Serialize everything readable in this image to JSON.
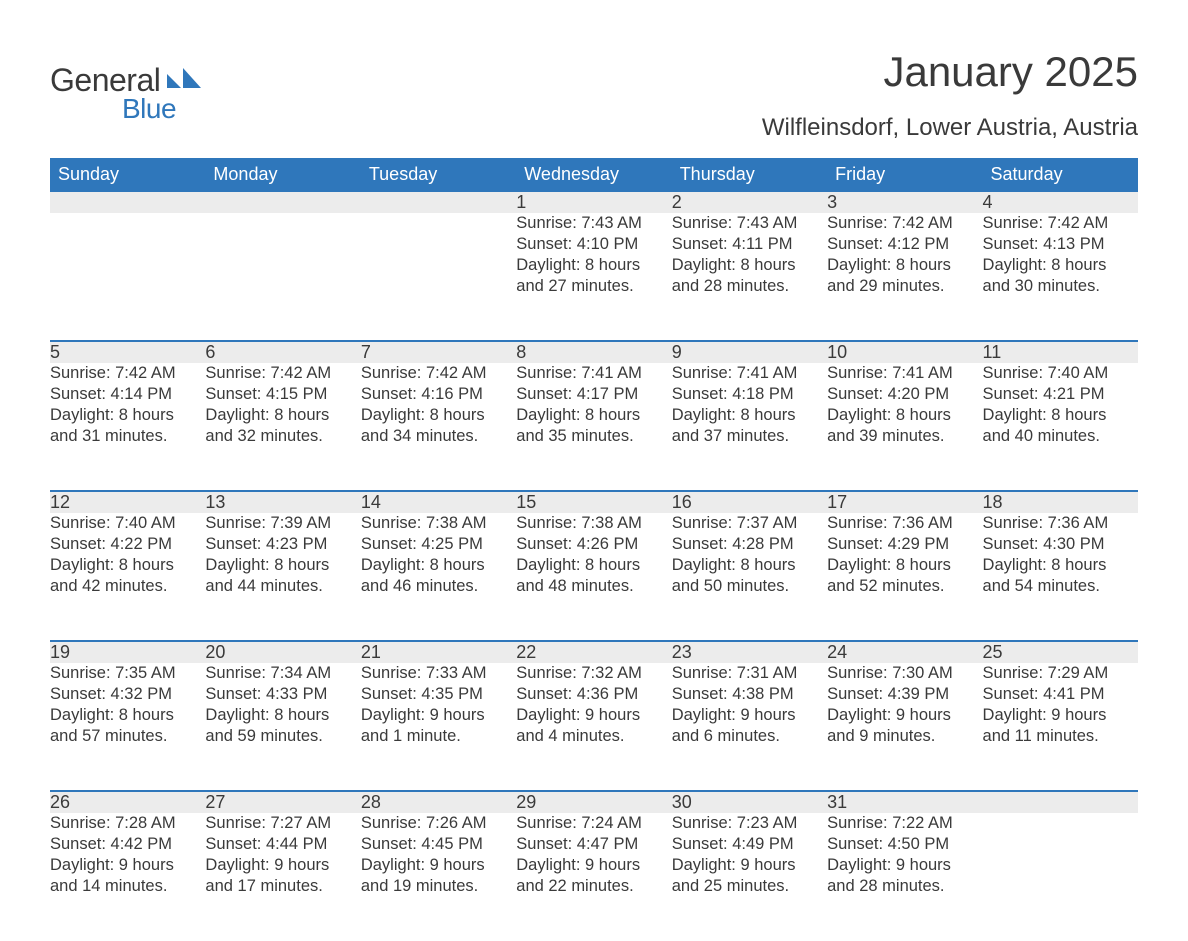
{
  "brand": {
    "word1": "General",
    "word2": "Blue",
    "mark_color": "#2f77bb"
  },
  "title": "January 2025",
  "location": "Wilfleinsdorf, Lower Austria, Austria",
  "colors": {
    "header_bg": "#2f77bb",
    "header_text": "#ffffff",
    "daynum_bg": "#ececec",
    "row_divider": "#2f77bb",
    "body_text": "#3a3a3a",
    "page_bg": "#ffffff"
  },
  "typography": {
    "title_fontsize": 42,
    "location_fontsize": 24,
    "header_fontsize": 18,
    "daynum_fontsize": 18,
    "info_fontsize": 16.5,
    "font_family": "Arial"
  },
  "day_headers": [
    "Sunday",
    "Monday",
    "Tuesday",
    "Wednesday",
    "Thursday",
    "Friday",
    "Saturday"
  ],
  "weeks": [
    [
      null,
      null,
      null,
      {
        "n": "1",
        "sunrise": "7:43 AM",
        "sunset": "4:10 PM",
        "daylight": "8 hours and 27 minutes."
      },
      {
        "n": "2",
        "sunrise": "7:43 AM",
        "sunset": "4:11 PM",
        "daylight": "8 hours and 28 minutes."
      },
      {
        "n": "3",
        "sunrise": "7:42 AM",
        "sunset": "4:12 PM",
        "daylight": "8 hours and 29 minutes."
      },
      {
        "n": "4",
        "sunrise": "7:42 AM",
        "sunset": "4:13 PM",
        "daylight": "8 hours and 30 minutes."
      }
    ],
    [
      {
        "n": "5",
        "sunrise": "7:42 AM",
        "sunset": "4:14 PM",
        "daylight": "8 hours and 31 minutes."
      },
      {
        "n": "6",
        "sunrise": "7:42 AM",
        "sunset": "4:15 PM",
        "daylight": "8 hours and 32 minutes."
      },
      {
        "n": "7",
        "sunrise": "7:42 AM",
        "sunset": "4:16 PM",
        "daylight": "8 hours and 34 minutes."
      },
      {
        "n": "8",
        "sunrise": "7:41 AM",
        "sunset": "4:17 PM",
        "daylight": "8 hours and 35 minutes."
      },
      {
        "n": "9",
        "sunrise": "7:41 AM",
        "sunset": "4:18 PM",
        "daylight": "8 hours and 37 minutes."
      },
      {
        "n": "10",
        "sunrise": "7:41 AM",
        "sunset": "4:20 PM",
        "daylight": "8 hours and 39 minutes."
      },
      {
        "n": "11",
        "sunrise": "7:40 AM",
        "sunset": "4:21 PM",
        "daylight": "8 hours and 40 minutes."
      }
    ],
    [
      {
        "n": "12",
        "sunrise": "7:40 AM",
        "sunset": "4:22 PM",
        "daylight": "8 hours and 42 minutes."
      },
      {
        "n": "13",
        "sunrise": "7:39 AM",
        "sunset": "4:23 PM",
        "daylight": "8 hours and 44 minutes."
      },
      {
        "n": "14",
        "sunrise": "7:38 AM",
        "sunset": "4:25 PM",
        "daylight": "8 hours and 46 minutes."
      },
      {
        "n": "15",
        "sunrise": "7:38 AM",
        "sunset": "4:26 PM",
        "daylight": "8 hours and 48 minutes."
      },
      {
        "n": "16",
        "sunrise": "7:37 AM",
        "sunset": "4:28 PM",
        "daylight": "8 hours and 50 minutes."
      },
      {
        "n": "17",
        "sunrise": "7:36 AM",
        "sunset": "4:29 PM",
        "daylight": "8 hours and 52 minutes."
      },
      {
        "n": "18",
        "sunrise": "7:36 AM",
        "sunset": "4:30 PM",
        "daylight": "8 hours and 54 minutes."
      }
    ],
    [
      {
        "n": "19",
        "sunrise": "7:35 AM",
        "sunset": "4:32 PM",
        "daylight": "8 hours and 57 minutes."
      },
      {
        "n": "20",
        "sunrise": "7:34 AM",
        "sunset": "4:33 PM",
        "daylight": "8 hours and 59 minutes."
      },
      {
        "n": "21",
        "sunrise": "7:33 AM",
        "sunset": "4:35 PM",
        "daylight": "9 hours and 1 minute."
      },
      {
        "n": "22",
        "sunrise": "7:32 AM",
        "sunset": "4:36 PM",
        "daylight": "9 hours and 4 minutes."
      },
      {
        "n": "23",
        "sunrise": "7:31 AM",
        "sunset": "4:38 PM",
        "daylight": "9 hours and 6 minutes."
      },
      {
        "n": "24",
        "sunrise": "7:30 AM",
        "sunset": "4:39 PM",
        "daylight": "9 hours and 9 minutes."
      },
      {
        "n": "25",
        "sunrise": "7:29 AM",
        "sunset": "4:41 PM",
        "daylight": "9 hours and 11 minutes."
      }
    ],
    [
      {
        "n": "26",
        "sunrise": "7:28 AM",
        "sunset": "4:42 PM",
        "daylight": "9 hours and 14 minutes."
      },
      {
        "n": "27",
        "sunrise": "7:27 AM",
        "sunset": "4:44 PM",
        "daylight": "9 hours and 17 minutes."
      },
      {
        "n": "28",
        "sunrise": "7:26 AM",
        "sunset": "4:45 PM",
        "daylight": "9 hours and 19 minutes."
      },
      {
        "n": "29",
        "sunrise": "7:24 AM",
        "sunset": "4:47 PM",
        "daylight": "9 hours and 22 minutes."
      },
      {
        "n": "30",
        "sunrise": "7:23 AM",
        "sunset": "4:49 PM",
        "daylight": "9 hours and 25 minutes."
      },
      {
        "n": "31",
        "sunrise": "7:22 AM",
        "sunset": "4:50 PM",
        "daylight": "9 hours and 28 minutes."
      },
      null
    ]
  ],
  "labels": {
    "sunrise": "Sunrise: ",
    "sunset": "Sunset: ",
    "daylight": "Daylight: "
  }
}
